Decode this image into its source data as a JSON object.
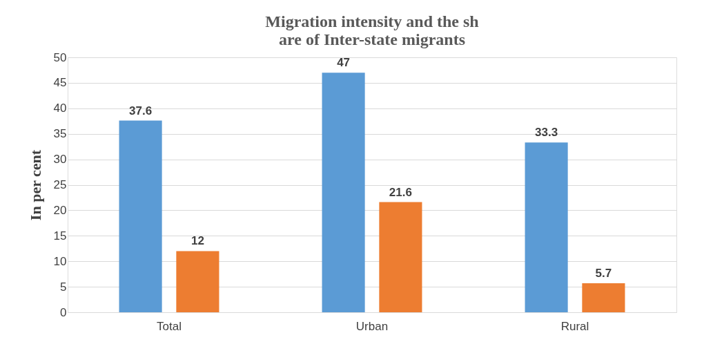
{
  "chart_data": {
    "type": "bar",
    "title": "Migration intensity and the sh\nare of Inter-state migrants",
    "ylabel": "In per cent",
    "categories": [
      "Total",
      "Urban",
      "Rural"
    ],
    "series": [
      {
        "color": "#5b9bd5",
        "values": [
          37.6,
          47,
          33.3
        ]
      },
      {
        "color": "#ed7d31",
        "values": [
          12,
          21.6,
          5.7
        ]
      }
    ],
    "ylim": [
      0,
      50
    ],
    "yticks": [
      0,
      5,
      10,
      15,
      20,
      25,
      30,
      35,
      40,
      45,
      50
    ],
    "grid": "y",
    "data_labels": true,
    "legend": false
  }
}
